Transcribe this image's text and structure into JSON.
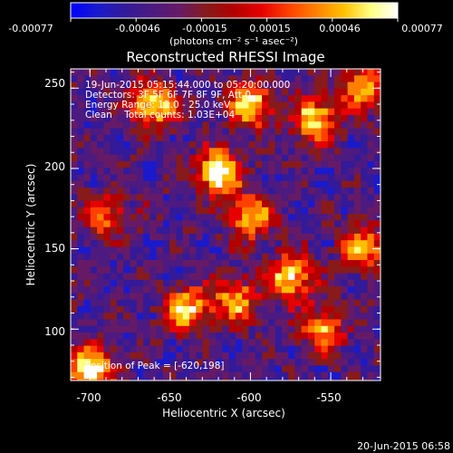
{
  "colorbar": {
    "tick_labels": [
      "-0.00077",
      "-0.00046",
      "-0.00015",
      "0.00015",
      "0.00046",
      "0.00077"
    ],
    "unit_label": "(photons cm⁻² s⁻¹ asec⁻²)",
    "colors": [
      "#0000ff",
      "#1a1acc",
      "#331a99",
      "#4d1a80",
      "#661a66",
      "#881a1a",
      "#b30000",
      "#e60000",
      "#ff4000",
      "#ff8000",
      "#ffbf00",
      "#ffff80",
      "#ffffff"
    ]
  },
  "image": {
    "title": "Reconstructed RHESSI Image",
    "info_lines": [
      "19-Jun-2015 05:15:44.000 to 05:20:00.000",
      "Detectors: 3F 5F 6F 7F 8F 9F, Att 0",
      "Energy Range: 12.0 - 25.0 keV",
      "Clean    Total counts: 1.03E+04"
    ],
    "peak_label": "Position of Peak = [-620,198]",
    "xlabel": "Heliocentric X (arcsec)",
    "ylabel": "Heliocentric Y (arcsec)",
    "x_ticks": [
      "-700",
      "-650",
      "-600",
      "-550"
    ],
    "y_ticks": [
      "250",
      "200",
      "150",
      "100"
    ],
    "x_tick_values": [
      -700,
      -650,
      -600,
      -550
    ],
    "y_tick_values": [
      250,
      200,
      150,
      100
    ],
    "xlim": [
      -712,
      -519
    ],
    "ylim": [
      68,
      262
    ],
    "peak": [
      -620,
      198
    ],
    "bright_sources": [
      {
        "x": -620,
        "y": 198,
        "strength": 1.0
      },
      {
        "x": -660,
        "y": 240,
        "strength": 0.9
      },
      {
        "x": -600,
        "y": 240,
        "strength": 0.85
      },
      {
        "x": -560,
        "y": 230,
        "strength": 0.8
      },
      {
        "x": -700,
        "y": 75,
        "strength": 0.95
      },
      {
        "x": -640,
        "y": 112,
        "strength": 0.8
      },
      {
        "x": -600,
        "y": 170,
        "strength": 0.75
      },
      {
        "x": -575,
        "y": 132,
        "strength": 0.85
      },
      {
        "x": -610,
        "y": 118,
        "strength": 0.7
      },
      {
        "x": -530,
        "y": 150,
        "strength": 0.7
      },
      {
        "x": -690,
        "y": 170,
        "strength": 0.55
      },
      {
        "x": -555,
        "y": 100,
        "strength": 0.65
      },
      {
        "x": -530,
        "y": 250,
        "strength": 0.7
      }
    ]
  },
  "footer": {
    "timestamp": "20-Jun-2015 06:58"
  }
}
